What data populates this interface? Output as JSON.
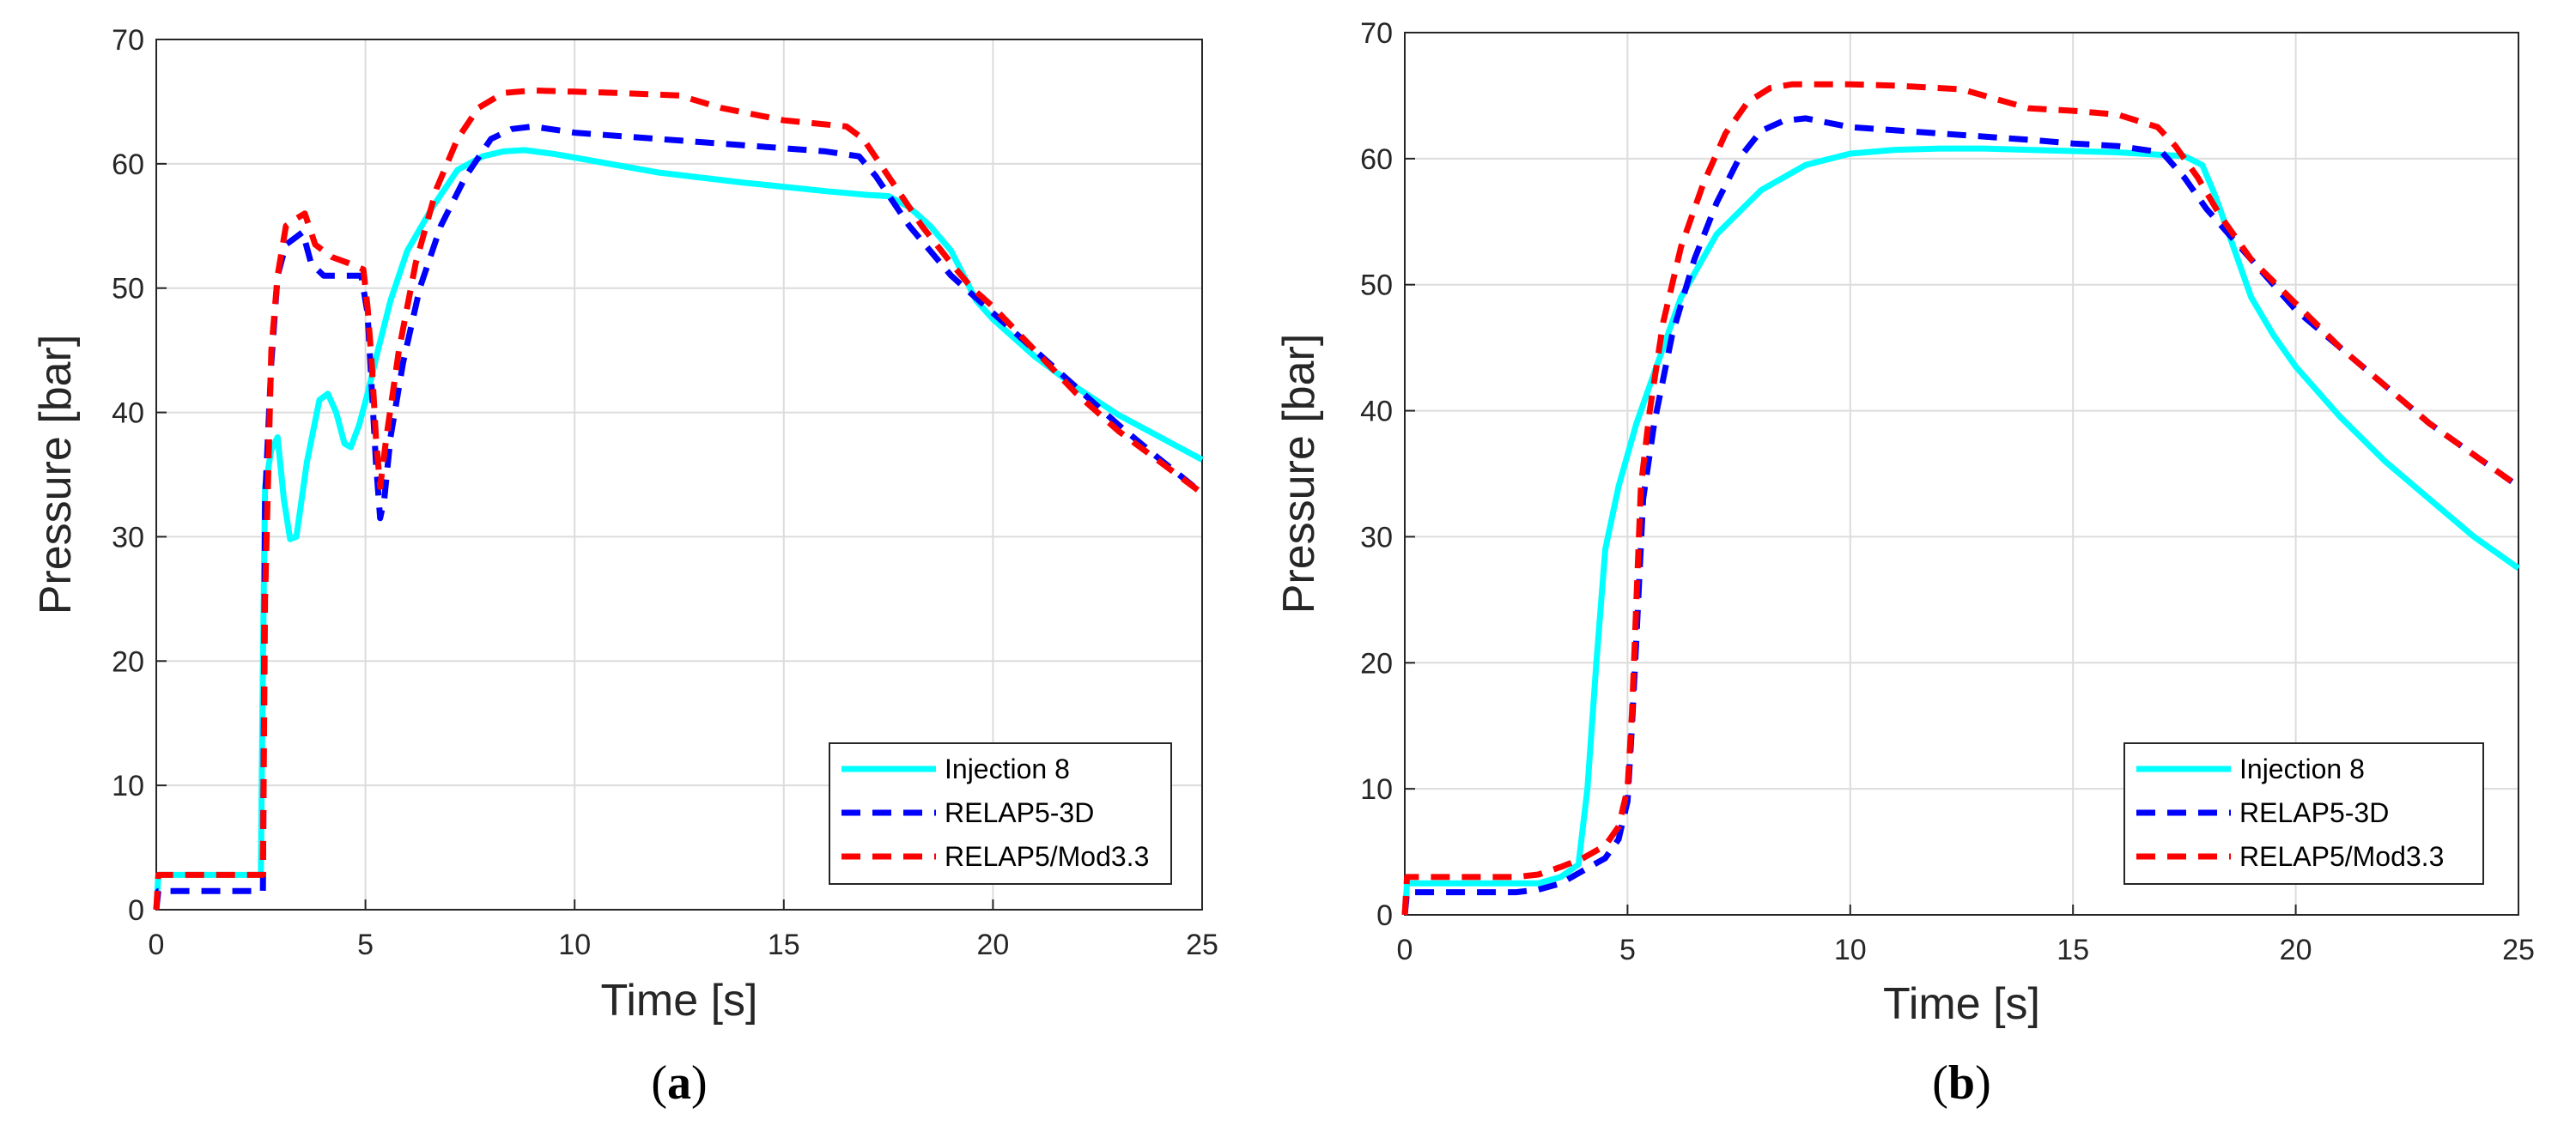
{
  "colors": {
    "injection": "#00FFFF",
    "relap3d": "#0000FF",
    "mod33": "#FF0000",
    "grid": "#DCDCDC",
    "axis": "#262626",
    "text": "#262626"
  },
  "chart_data": [
    {
      "type": "line",
      "panel": "a",
      "caption_letter": "a",
      "caption_open": "(",
      "caption_close": ")",
      "xlabel": "Time [s]",
      "ylabel": "Pressure [bar]",
      "xlim": [
        0,
        25
      ],
      "ylim": [
        0,
        70
      ],
      "xticks": [
        0,
        5,
        10,
        15,
        20,
        25
      ],
      "yticks": [
        0,
        10,
        20,
        30,
        40,
        50,
        60,
        70
      ],
      "grid": true,
      "legend_position": "bottom-right",
      "series": [
        {
          "name": "Injection 8",
          "style": "solid",
          "color_key": "injection",
          "x": [
            0,
            0.05,
            2.5,
            2.55,
            2.6,
            2.75,
            2.9,
            3.05,
            3.2,
            3.35,
            3.6,
            3.9,
            4.1,
            4.3,
            4.5,
            4.65,
            4.85,
            5.05,
            5.3,
            5.6,
            6.0,
            6.6,
            7.2,
            7.8,
            8.3,
            8.8,
            9.5,
            10.5,
            12,
            14,
            16,
            17,
            17.5,
            18,
            18.5,
            19,
            19.3,
            19.6,
            20,
            21,
            22,
            23,
            24,
            25
          ],
          "y": [
            0,
            2.8,
            2.8,
            20,
            34,
            37,
            38,
            33,
            29.8,
            30,
            36,
            41,
            41.5,
            40,
            37.5,
            37.2,
            39,
            41.5,
            45,
            49,
            53,
            56.5,
            59.5,
            60.6,
            61,
            61.1,
            60.8,
            60.2,
            59.3,
            58.5,
            57.8,
            57.5,
            57.4,
            56.5,
            55,
            53,
            51,
            49,
            47.5,
            44.5,
            42,
            39.8,
            38,
            36.2
          ]
        },
        {
          "name": "RELAP5-3D",
          "style": "dashed",
          "color_key": "relap3d",
          "x": [
            0,
            0.05,
            2.55,
            2.6,
            2.75,
            2.9,
            3.1,
            3.3,
            3.5,
            3.7,
            4.0,
            4.5,
            4.9,
            5.05,
            5.15,
            5.25,
            5.35,
            5.45,
            5.6,
            5.9,
            6.3,
            6.8,
            7.4,
            8.0,
            8.5,
            9.0,
            10,
            12,
            14,
            16,
            16.8,
            17.2,
            17.6,
            18,
            18.5,
            19,
            19.5,
            20,
            21,
            22,
            23,
            24,
            25
          ],
          "y": [
            0,
            1.5,
            1.5,
            33,
            44,
            51,
            53.5,
            54,
            54.5,
            52,
            51,
            51,
            51,
            48,
            42,
            36,
            31.5,
            33,
            38,
            44,
            50,
            55,
            59,
            62,
            62.8,
            63,
            62.5,
            62,
            61.5,
            61,
            60.6,
            59,
            57,
            55,
            53,
            51,
            49.5,
            48,
            45,
            42,
            39,
            36.2,
            33.5
          ]
        },
        {
          "name": "RELAP5/Mod3.3",
          "style": "dashed",
          "color_key": "mod33",
          "x": [
            0,
            0.05,
            2.55,
            2.6,
            2.75,
            2.9,
            3.1,
            3.3,
            3.55,
            3.8,
            4.2,
            4.6,
            4.95,
            5.05,
            5.15,
            5.25,
            5.35,
            5.5,
            5.8,
            6.2,
            6.7,
            7.2,
            7.7,
            8.3,
            9.0,
            10,
            11,
            12.5,
            13.5,
            15,
            16.5,
            16.9,
            17.3,
            17.8,
            18.3,
            19,
            19.5,
            20,
            21,
            22,
            23,
            24,
            25
          ],
          "y": [
            0,
            2.8,
            2.8,
            25,
            45,
            51,
            55,
            55.5,
            56,
            53.5,
            52.5,
            52,
            51.5,
            48.5,
            44,
            38,
            34,
            38,
            45,
            52,
            58,
            62,
            64.5,
            65.7,
            65.9,
            65.8,
            65.7,
            65.5,
            64.5,
            63.5,
            63,
            62,
            60,
            57.5,
            55,
            52,
            50,
            48.5,
            45,
            41.5,
            38.5,
            36,
            33.5
          ]
        }
      ]
    },
    {
      "type": "line",
      "panel": "b",
      "caption_letter": "b",
      "caption_open": "(",
      "caption_close": ")",
      "xlabel": "Time [s]",
      "ylabel": "Pressure [bar]",
      "xlim": [
        0,
        25
      ],
      "ylim": [
        0,
        70
      ],
      "xticks": [
        0,
        5,
        10,
        15,
        20,
        25
      ],
      "yticks": [
        0,
        10,
        20,
        30,
        40,
        50,
        60,
        70
      ],
      "grid": true,
      "legend_position": "bottom-right",
      "series": [
        {
          "name": "Injection 8",
          "style": "solid",
          "color_key": "injection",
          "x": [
            0,
            0.05,
            3.0,
            3.5,
            3.9,
            4.1,
            4.3,
            4.5,
            4.8,
            5.2,
            5.6,
            6.2,
            7.0,
            8.0,
            9.0,
            10,
            11,
            12,
            13,
            14,
            15,
            16,
            17,
            17.5,
            17.9,
            18.2,
            18.6,
            19,
            19.5,
            20,
            21,
            22,
            23,
            24,
            25
          ],
          "y": [
            0,
            2.5,
            2.5,
            3,
            4,
            10,
            20,
            29,
            34,
            39,
            43,
            49,
            54,
            57.5,
            59.5,
            60.4,
            60.7,
            60.8,
            60.8,
            60.7,
            60.6,
            60.5,
            60.3,
            60.2,
            59.5,
            57,
            53,
            49,
            46,
            43.5,
            39.5,
            36,
            33,
            30,
            27.5
          ]
        },
        {
          "name": "RELAP5-3D",
          "style": "dashed",
          "color_key": "relap3d",
          "x": [
            0,
            0.05,
            2.5,
            3.0,
            3.5,
            4.0,
            4.5,
            4.8,
            5.0,
            5.1,
            5.2,
            5.35,
            5.6,
            6.0,
            6.5,
            7.0,
            7.5,
            8.0,
            8.5,
            9.0,
            10,
            12,
            14,
            15,
            16,
            17,
            17.5,
            18,
            18.5,
            19,
            19.5,
            20,
            21,
            22,
            23,
            24,
            25
          ],
          "y": [
            0,
            1.8,
            1.8,
            2,
            2.5,
            3.5,
            4.5,
            6,
            9,
            15,
            22,
            33,
            39,
            46,
            52,
            56.5,
            60,
            62.2,
            63,
            63.2,
            62.5,
            62,
            61.5,
            61.2,
            61,
            60.5,
            58.5,
            56,
            54,
            52,
            50,
            48,
            45,
            42,
            39,
            36.5,
            34
          ]
        },
        {
          "name": "RELAP5/Mod3.3",
          "style": "dashed",
          "color_key": "mod33",
          "x": [
            0,
            0.05,
            2.5,
            3.0,
            3.5,
            4.0,
            4.5,
            4.8,
            5.0,
            5.1,
            5.2,
            5.3,
            5.5,
            5.8,
            6.2,
            6.7,
            7.2,
            7.7,
            8.2,
            8.7,
            9.5,
            10,
            11,
            12.5,
            13,
            14,
            15,
            16,
            16.9,
            17.3,
            17.8,
            18.3,
            19,
            20,
            21,
            22,
            23,
            24,
            25
          ],
          "y": [
            0,
            3,
            3,
            3.2,
            3.8,
            4.5,
            5.5,
            7,
            10,
            16,
            25,
            34,
            40,
            47,
            53,
            58,
            62,
            64.5,
            65.6,
            65.9,
            65.9,
            65.9,
            65.8,
            65.5,
            65,
            64,
            63.8,
            63.5,
            62.5,
            61,
            58.5,
            55.5,
            52,
            48.5,
            45,
            42,
            39,
            36.5,
            34
          ]
        }
      ]
    }
  ]
}
